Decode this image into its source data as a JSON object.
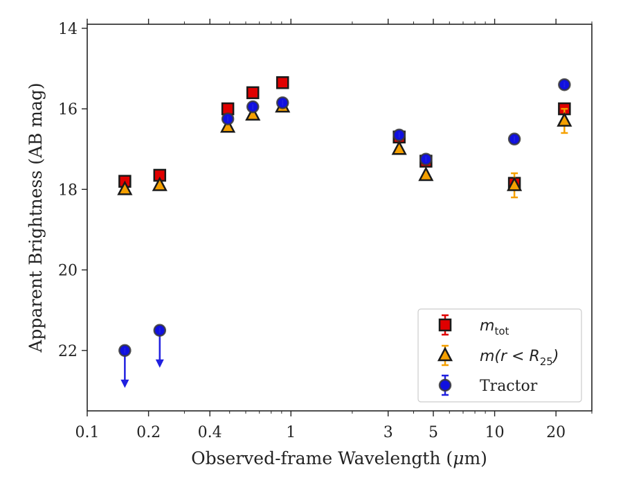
{
  "chart_data": {
    "type": "scatter",
    "xlabel_prefix": "Observed-frame Wavelength (",
    "xlabel_mu": "μ",
    "xlabel_suffix": "m)",
    "ylabel": "Apparent Brightness (AB mag)",
    "x_scale": "log",
    "y_inverted": true,
    "xlim": [
      0.1,
      30
    ],
    "ylim": [
      23.5,
      13.9
    ],
    "xticks": [
      {
        "value": 0.1,
        "label": "0.1"
      },
      {
        "value": 0.2,
        "label": "0.2"
      },
      {
        "value": 0.4,
        "label": "0.4"
      },
      {
        "value": 1,
        "label": "1"
      },
      {
        "value": 3,
        "label": "3"
      },
      {
        "value": 5,
        "label": "5"
      },
      {
        "value": 10,
        "label": "10"
      },
      {
        "value": 20,
        "label": "20"
      }
    ],
    "yticks": [
      {
        "value": 14,
        "label": "14"
      },
      {
        "value": 16,
        "label": "16"
      },
      {
        "value": 18,
        "label": "18"
      },
      {
        "value": 20,
        "label": "20"
      },
      {
        "value": 22,
        "label": "22"
      }
    ],
    "grid": false,
    "legend_position": "bottom-right",
    "series": [
      {
        "name": "m_tot",
        "legend_main": "m",
        "legend_sub": "tot",
        "marker": "square",
        "color": "#e00000",
        "errcolor": "#e00000",
        "points": [
          {
            "x": 0.153,
            "y": 17.8,
            "err": 0.05
          },
          {
            "x": 0.227,
            "y": 17.65,
            "err": 0.05
          },
          {
            "x": 0.49,
            "y": 16.0,
            "err": 0.04
          },
          {
            "x": 0.65,
            "y": 15.6,
            "err": 0.04
          },
          {
            "x": 0.91,
            "y": 15.35,
            "err": 0.04
          },
          {
            "x": 3.4,
            "y": 16.7,
            "err": 0.05
          },
          {
            "x": 4.6,
            "y": 17.3,
            "err": 0.06
          },
          {
            "x": 12.5,
            "y": 17.85,
            "err": 0.1
          },
          {
            "x": 22.0,
            "y": 16.0,
            "err": 0.08
          }
        ]
      },
      {
        "name": "m(r < R25)",
        "legend_main": "m(r < R",
        "legend_sub": "25",
        "legend_tail": ")",
        "marker": "triangle",
        "color": "#f5a000",
        "errcolor": "#f5a000",
        "points": [
          {
            "x": 0.153,
            "y": 18.0,
            "err": 0.05
          },
          {
            "x": 0.227,
            "y": 17.9,
            "err": 0.05
          },
          {
            "x": 0.49,
            "y": 16.45,
            "err": 0.04
          },
          {
            "x": 0.65,
            "y": 16.15,
            "err": 0.04
          },
          {
            "x": 0.91,
            "y": 15.95,
            "err": 0.04
          },
          {
            "x": 3.4,
            "y": 17.0,
            "err": 0.05
          },
          {
            "x": 4.6,
            "y": 17.65,
            "err": 0.06
          },
          {
            "x": 12.5,
            "y": 17.9,
            "err": 0.3
          },
          {
            "x": 22.0,
            "y": 16.3,
            "err": 0.3
          }
        ]
      },
      {
        "name": "Tractor",
        "legend_main": "Tractor",
        "marker": "circle",
        "color": "#1010e0",
        "errcolor": "#2020e0",
        "points": [
          {
            "x": 0.153,
            "y": 22.0,
            "upper_limit": true
          },
          {
            "x": 0.227,
            "y": 21.5,
            "upper_limit": true
          },
          {
            "x": 0.49,
            "y": 16.25,
            "err": 0.05
          },
          {
            "x": 0.65,
            "y": 15.95,
            "err": 0.05
          },
          {
            "x": 0.91,
            "y": 15.85,
            "err": 0.05
          },
          {
            "x": 3.4,
            "y": 16.65,
            "err": 0.05
          },
          {
            "x": 4.6,
            "y": 17.25,
            "err": 0.05
          },
          {
            "x": 12.5,
            "y": 16.75,
            "err": 0.05
          },
          {
            "x": 22.0,
            "y": 15.4,
            "err": 0.05
          }
        ]
      }
    ]
  }
}
